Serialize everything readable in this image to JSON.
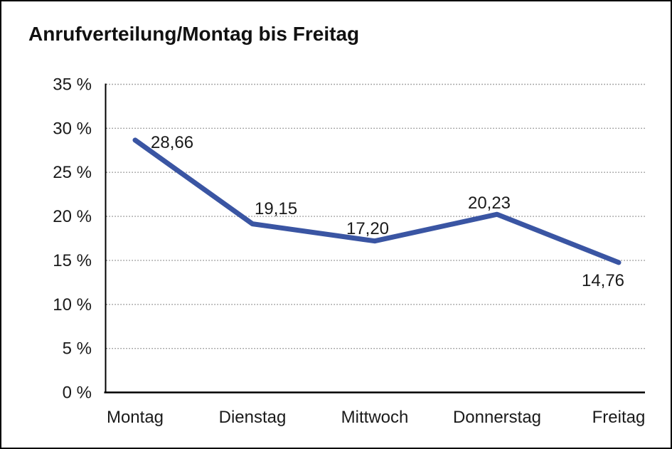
{
  "chart_data": {
    "type": "line",
    "title": "Anrufverteilung/Montag bis Freitag",
    "categories": [
      "Montag",
      "Dienstag",
      "Mittwoch",
      "Donnerstag",
      "Freitag"
    ],
    "values": [
      28.66,
      19.15,
      17.2,
      20.23,
      14.76
    ],
    "point_labels": [
      "28,66",
      "19,15",
      "17,20",
      "20,23",
      "14,76"
    ],
    "ytick_labels": [
      "0 %",
      "5 %",
      "10 %",
      "15 %",
      "20 %",
      "25 %",
      "30 %",
      "35 %"
    ],
    "ylim": [
      0,
      35
    ],
    "ytick_step": 5,
    "xlabel": "",
    "ylabel": "",
    "grid": "horizontal-dotted",
    "legend": "none",
    "line_color": "#3A55A3",
    "grid_color": "#555555",
    "axis_color": "#000000",
    "text_color": "#1a1a1a"
  }
}
